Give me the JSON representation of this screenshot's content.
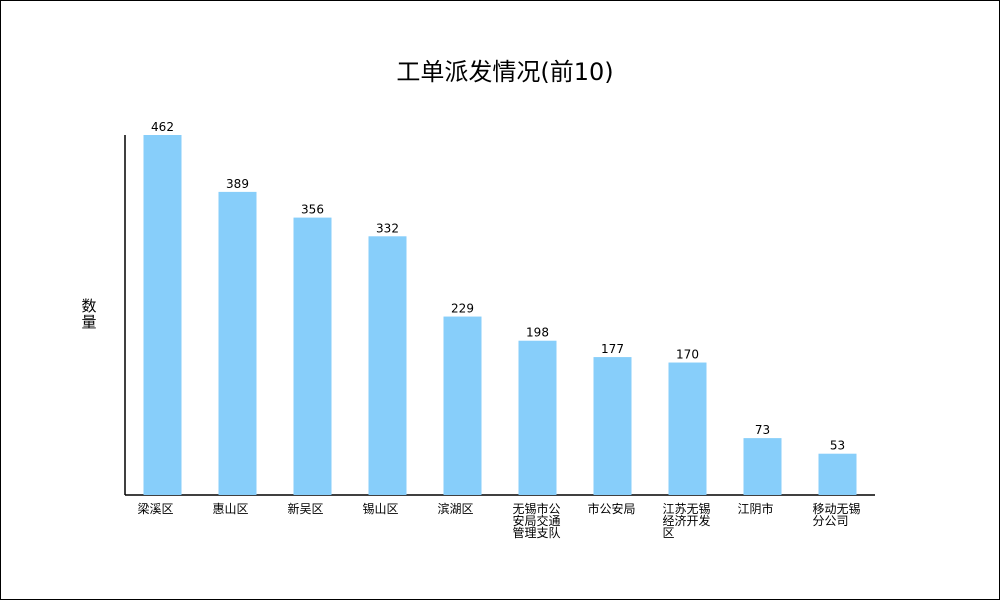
{
  "chart_data": {
    "type": "bar",
    "title": "工单派发情况(前10)",
    "xlabel": "",
    "ylabel": "数量",
    "ylim": [
      0,
      462
    ],
    "grid": false,
    "legend": "none",
    "bar_color": "#87cefa",
    "categories": [
      "梁溪区",
      "惠山区",
      "新吴区",
      "锡山区",
      "滨湖区",
      "无锡市公安局交通管理支队",
      "市公安局",
      "江苏无锡经济开发区",
      "江阴市",
      "移动无锡分公司"
    ],
    "values": [
      462,
      389,
      356,
      332,
      229,
      198,
      177,
      170,
      73,
      53
    ]
  }
}
